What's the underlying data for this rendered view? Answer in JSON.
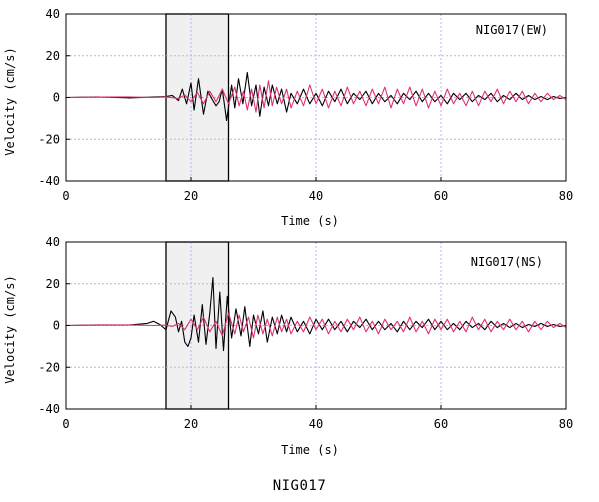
{
  "figure_title": "NIG017",
  "colors": {
    "trace1": "#000000",
    "trace2": "#e0307a",
    "grid": "#b4b4f0",
    "window_fill": "#f0f0f0"
  },
  "chart_data": [
    {
      "type": "line",
      "panel_label": "NIG017(EW)",
      "xlabel": "Time (s)",
      "ylabel": "Velocity (cm/s)",
      "xlim": [
        0,
        80
      ],
      "ylim": [
        -40,
        40
      ],
      "xticks": [
        0,
        20,
        40,
        60,
        80
      ],
      "yticks": [
        40,
        20,
        0,
        -20,
        -40
      ],
      "grid": true,
      "highlight_window": [
        16,
        26
      ],
      "series": [
        {
          "color": "#000000",
          "x": [
            0,
            5,
            10,
            14,
            16,
            17,
            18,
            18.6,
            19.3,
            20,
            20.5,
            21.2,
            22,
            22.7,
            23.4,
            24,
            24.5,
            25,
            25.7,
            26.5,
            27,
            27.6,
            28.3,
            29,
            29.7,
            30.4,
            31,
            31.7,
            32.4,
            33,
            33.8,
            34.5,
            35.3,
            36,
            37,
            38,
            39,
            40,
            41,
            42,
            43,
            44,
            45,
            46,
            47,
            48,
            49,
            50,
            51,
            52,
            53,
            54,
            55,
            56,
            57,
            58,
            59,
            60,
            61,
            62,
            63,
            64,
            65,
            66,
            67,
            68,
            69,
            70,
            71,
            72,
            73,
            74,
            75,
            76,
            77,
            78,
            79,
            80
          ],
          "y": [
            0,
            0.3,
            -0.2,
            0.2,
            0.5,
            1.0,
            -1.5,
            4,
            -3,
            7,
            -6,
            9,
            -8,
            3,
            -1,
            -4,
            -2,
            4,
            -11,
            6,
            -5,
            9,
            -3,
            12,
            -4,
            6,
            -9,
            5,
            -4,
            6,
            -3,
            4,
            -7,
            2,
            -3,
            4,
            -3,
            2,
            -4,
            3,
            -2,
            4,
            -3,
            2,
            -1,
            3,
            -3,
            2,
            -2,
            1,
            -3,
            2,
            -1,
            3,
            -2,
            2,
            -2,
            1,
            -3,
            2,
            -1,
            2,
            -2,
            1,
            -1,
            2,
            -2,
            1,
            -1,
            2,
            -1,
            1,
            -1,
            0.5,
            -1,
            0.5,
            -0.5,
            0
          ]
        },
        {
          "color": "#e0307a",
          "x": [
            0,
            5,
            10,
            14,
            16,
            18,
            19,
            20,
            21,
            22,
            23,
            24,
            25,
            26,
            27,
            27.7,
            28.4,
            29,
            29.7,
            30.4,
            31,
            31.7,
            32.4,
            33,
            33.7,
            34.5,
            35.3,
            36,
            37,
            38,
            39,
            40,
            41,
            42,
            43,
            44,
            45,
            46,
            47,
            48,
            49,
            50,
            51,
            52,
            53,
            54,
            55,
            56,
            57,
            58,
            59,
            60,
            61,
            62,
            63,
            64,
            65,
            66,
            67,
            68,
            69,
            70,
            71,
            72,
            73,
            74,
            75,
            76,
            77,
            78,
            79,
            80
          ],
          "y": [
            0,
            0.2,
            0.3,
            0,
            0.3,
            -0.5,
            1.2,
            -2,
            2.5,
            -3,
            3,
            -2,
            4,
            -3,
            5,
            -4,
            3,
            -6,
            4,
            -7,
            6,
            -5,
            8,
            -4,
            5,
            -3,
            4,
            -5,
            3,
            -4,
            6,
            -3,
            4,
            -5,
            3,
            -4,
            5,
            -3,
            3,
            -4,
            4,
            -3,
            5,
            -5,
            4,
            -3,
            5,
            -4,
            4,
            -5,
            3,
            -4,
            4,
            -3,
            2,
            -4,
            3,
            -4,
            3,
            -2,
            4,
            -3,
            3,
            -2,
            3,
            -3,
            2,
            -2,
            2,
            -1,
            1,
            -1
          ]
        }
      ]
    },
    {
      "type": "line",
      "panel_label": "NIG017(NS)",
      "xlabel": "Time (s)",
      "ylabel": "Velocity (cm/s)",
      "xlim": [
        0,
        80
      ],
      "ylim": [
        -40,
        40
      ],
      "xticks": [
        0,
        20,
        40,
        60,
        80
      ],
      "yticks": [
        40,
        20,
        0,
        -20,
        -40
      ],
      "grid": true,
      "highlight_window": [
        16,
        26
      ],
      "series": [
        {
          "color": "#000000",
          "x": [
            0,
            5,
            10,
            13,
            14,
            15,
            16,
            16.8,
            17.5,
            18,
            18.5,
            19,
            19.5,
            20,
            20.5,
            21.2,
            21.8,
            22.4,
            23,
            23.5,
            24,
            24.6,
            25.2,
            25.8,
            26.5,
            27.2,
            28,
            28.6,
            29.4,
            30,
            30.8,
            31.5,
            32.2,
            33,
            33.8,
            34.5,
            35.3,
            36,
            37,
            38,
            39,
            40,
            41,
            42,
            43,
            44,
            45,
            46,
            47,
            48,
            49,
            50,
            51,
            52,
            53,
            54,
            55,
            56,
            57,
            58,
            59,
            60,
            61,
            62,
            63,
            64,
            65,
            66,
            67,
            68,
            69,
            70,
            71,
            72,
            73,
            74,
            75,
            76,
            77,
            78,
            79,
            80
          ],
          "y": [
            0,
            0.3,
            0.2,
            1,
            2,
            0.5,
            -2,
            7,
            4,
            -3,
            2,
            -8,
            -10,
            -6,
            5,
            -8,
            10,
            -9,
            6,
            23,
            -11,
            16,
            -12,
            14,
            -6,
            8,
            -5,
            9,
            -10,
            5,
            -4,
            7,
            -8,
            4,
            -4,
            5,
            -3,
            4,
            -3,
            2,
            -4,
            3,
            -2,
            3,
            -2,
            2,
            -3,
            2,
            -1,
            3,
            -2,
            2,
            -2,
            1,
            -3,
            2,
            -2,
            2,
            -1,
            3,
            -2,
            2,
            -2,
            1,
            -2,
            2,
            -1,
            1,
            -2,
            2,
            -1,
            1,
            -1,
            1,
            -1,
            0.5,
            -0.5,
            1,
            -0.5,
            0.5,
            -0.5,
            0
          ]
        },
        {
          "color": "#e0307a",
          "x": [
            0,
            5,
            10,
            14,
            16,
            17,
            18,
            19,
            20,
            21,
            22,
            23,
            24,
            25,
            26,
            27,
            27.7,
            28.4,
            29.2,
            30,
            30.7,
            31.5,
            32.2,
            33,
            33.8,
            34.5,
            35.3,
            36,
            37,
            38,
            39,
            40,
            41,
            42,
            43,
            44,
            45,
            46,
            47,
            48,
            49,
            50,
            51,
            52,
            53,
            54,
            55,
            56,
            57,
            58,
            59,
            60,
            61,
            62,
            63,
            64,
            65,
            66,
            67,
            68,
            69,
            70,
            71,
            72,
            73,
            74,
            75,
            76,
            77,
            78,
            79,
            80
          ],
          "y": [
            0,
            0.2,
            0.3,
            0,
            0.2,
            -0.5,
            1,
            -2,
            3,
            -2,
            4,
            -3,
            2,
            -5,
            6,
            -4,
            5,
            -3,
            4,
            -6,
            5,
            -4,
            3,
            -5,
            4,
            -3,
            3,
            -4,
            2,
            -3,
            4,
            -2,
            3,
            -4,
            2,
            -3,
            3,
            -2,
            4,
            -3,
            2,
            -4,
            3,
            -2,
            2,
            -3,
            4,
            -3,
            2,
            -4,
            3,
            -2,
            3,
            -3,
            2,
            -3,
            4,
            -2,
            3,
            -3,
            2,
            -2,
            3,
            -2,
            2,
            -3,
            2,
            -2,
            2,
            -1,
            1,
            -1
          ]
        }
      ]
    }
  ]
}
